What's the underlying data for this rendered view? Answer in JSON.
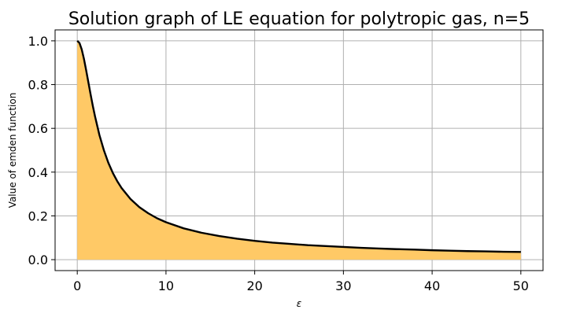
{
  "chart_data": {
    "type": "area",
    "title": "Solution graph of LE equation for polytropic gas, n=5",
    "xlabel": "ε",
    "ylabel": "Value of emden function",
    "xlim": [
      -2.5,
      52.5
    ],
    "ylim": [
      -0.05,
      1.05
    ],
    "xticks": [
      0,
      10,
      20,
      30,
      40,
      50
    ],
    "xtick_labels": [
      "0",
      "10",
      "20",
      "30",
      "40",
      "50"
    ],
    "yticks": [
      0.0,
      0.2,
      0.4,
      0.6,
      0.8,
      1.0
    ],
    "ytick_labels": [
      "0.0",
      "0.2",
      "0.4",
      "0.6",
      "0.8",
      "1.0"
    ],
    "grid": true,
    "legend": "none",
    "line_color": "#000000",
    "fill_color": "#ffc966",
    "series": [
      {
        "x": [
          0,
          0.25,
          0.5,
          0.75,
          1,
          1.25,
          1.5,
          1.75,
          2,
          2.5,
          3,
          3.5,
          4,
          4.5,
          5,
          6,
          7,
          8,
          9,
          10,
          12,
          14,
          16,
          18,
          20,
          22,
          24,
          26,
          28,
          30,
          32,
          34,
          36,
          38,
          40,
          42,
          44,
          46,
          48,
          50
        ],
        "y": [
          1.0,
          0.99,
          0.961,
          0.918,
          0.866,
          0.811,
          0.756,
          0.703,
          0.655,
          0.569,
          0.5,
          0.443,
          0.397,
          0.359,
          0.327,
          0.277,
          0.24,
          0.212,
          0.189,
          0.171,
          0.143,
          0.123,
          0.108,
          0.096,
          0.086,
          0.078,
          0.072,
          0.066,
          0.062,
          0.058,
          0.054,
          0.051,
          0.048,
          0.046,
          0.043,
          0.041,
          0.039,
          0.038,
          0.036,
          0.035
        ]
      }
    ]
  }
}
